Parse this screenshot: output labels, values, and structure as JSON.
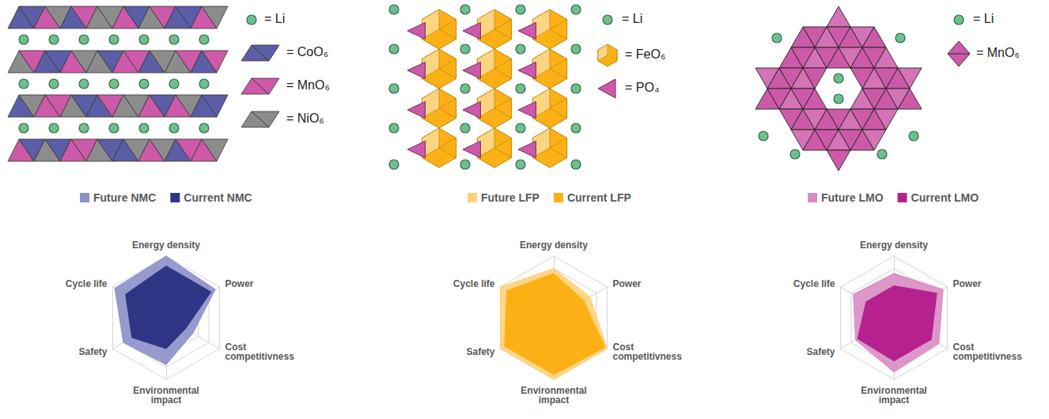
{
  "chart_data": [
    {
      "type": "radar",
      "categories": [
        "Energy density",
        "Power",
        "Cost competitivness",
        "Environmental impact",
        "Safety",
        "Cycle life"
      ],
      "ylim": [
        0,
        5
      ],
      "yticks": [
        0,
        1,
        2,
        3,
        4,
        5
      ],
      "tick_labels": false,
      "legend": "top",
      "series": [
        {
          "name": "Future NMC",
          "color": "#8c8fc8",
          "values": [
            5,
            4.6,
            2.5,
            3.8,
            4,
            4.8
          ]
        },
        {
          "name": "Current NMC",
          "color": "#2e3584",
          "values": [
            4.2,
            4.2,
            1.8,
            2.5,
            3.2,
            3.8
          ]
        }
      ]
    },
    {
      "type": "radar",
      "categories": [
        "Energy density",
        "Power",
        "Cost competitivness",
        "Environmental impact",
        "Safety",
        "Cycle life"
      ],
      "ylim": [
        0,
        5
      ],
      "yticks": [
        0,
        1,
        2,
        3,
        4,
        5
      ],
      "tick_labels": false,
      "legend": "top",
      "series": [
        {
          "name": "Future LFP",
          "color": "#fdd27a",
          "values": [
            4,
            3.4,
            5,
            5,
            5,
            5
          ]
        },
        {
          "name": "Current LFP",
          "color": "#fbb116",
          "values": [
            3.6,
            2.8,
            4.8,
            4.6,
            4.6,
            4.4
          ]
        }
      ]
    },
    {
      "type": "radar",
      "categories": [
        "Energy density",
        "Power",
        "Cost competitivness",
        "Environmental impact",
        "Safety",
        "Cycle life"
      ],
      "ylim": [
        0,
        5
      ],
      "yticks": [
        0,
        1,
        2,
        3,
        4,
        5
      ],
      "tick_labels": false,
      "legend": "top",
      "series": [
        {
          "name": "Future LMO",
          "color": "#d98cc4",
          "values": [
            3.6,
            4.6,
            4.2,
            4.4,
            3.6,
            3.8
          ]
        },
        {
          "name": "Current LMO",
          "color": "#b5228f",
          "values": [
            2.6,
            4,
            3.5,
            3.5,
            3.4,
            2.6
          ]
        }
      ]
    }
  ],
  "structures": [
    {
      "legend": [
        {
          "label": "= Li",
          "color": "#6fbf8e"
        },
        {
          "label": "= CoO₆",
          "color": "#5b5ea6"
        },
        {
          "label": "= MnO₆",
          "color": "#cc5aa8"
        },
        {
          "label": "= NiO₆",
          "color": "#8c8c8c"
        }
      ]
    },
    {
      "legend": [
        {
          "label": "= Li",
          "color": "#6fbf8e"
        },
        {
          "label": "= FeO₆",
          "color": "#fbb116"
        },
        {
          "label": "= PO₄",
          "color": "#cc5aa8"
        }
      ]
    },
    {
      "legend": [
        {
          "label": "= Li",
          "color": "#6fbf8e"
        },
        {
          "label": "= MnO₆",
          "color": "#cc5aa8"
        }
      ]
    }
  ]
}
